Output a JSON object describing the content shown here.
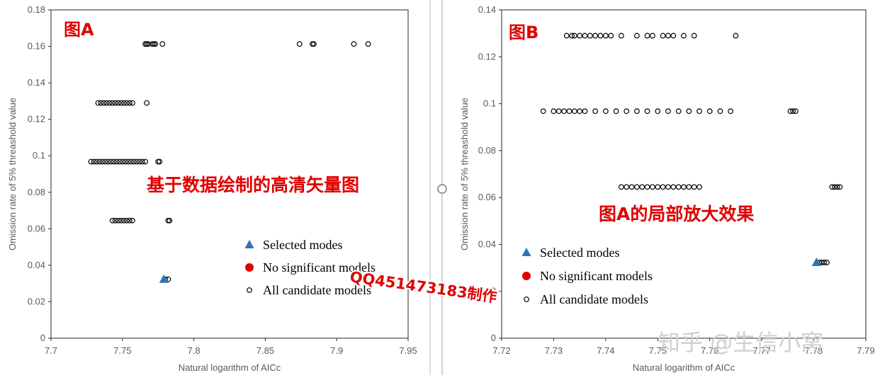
{
  "chart_data": [
    {
      "type": "scatter",
      "xlabel": "Natural logarithm of AICc",
      "ylabel": "Omission rate of 5% threashold value",
      "xlim": [
        7.7,
        7.95
      ],
      "xticks": [
        7.7,
        7.75,
        7.8,
        7.85,
        7.9,
        7.95
      ],
      "ylim": [
        0,
        0.18
      ],
      "yticks": [
        0,
        0.02,
        0.04,
        0.06,
        0.08,
        0.1,
        0.12,
        0.14,
        0.16,
        0.18
      ],
      "annotations": [
        "图A",
        "基于数据绘制的高清矢量图"
      ],
      "series": [
        {
          "name": "Selected modes",
          "color": "#2e75b6",
          "marker": "triangle",
          "x": [
            7.779
          ],
          "y": [
            0.0323
          ]
        },
        {
          "name": "No significant models",
          "color": "#e00000",
          "marker": "dot",
          "x": [],
          "y": []
        },
        {
          "name": "All candidate models",
          "color": "#000000",
          "marker": "open-circle",
          "x": [
            7.766,
            7.767,
            7.768,
            7.771,
            7.772,
            7.773,
            7.778,
            7.874,
            7.883,
            7.884,
            7.912,
            7.922,
            7.733,
            7.735,
            7.737,
            7.739,
            7.741,
            7.743,
            7.745,
            7.747,
            7.749,
            7.751,
            7.753,
            7.755,
            7.757,
            7.767,
            7.728,
            7.73,
            7.732,
            7.734,
            7.736,
            7.738,
            7.74,
            7.742,
            7.744,
            7.746,
            7.748,
            7.75,
            7.752,
            7.754,
            7.756,
            7.758,
            7.76,
            7.762,
            7.764,
            7.766,
            7.775,
            7.776,
            7.743,
            7.745,
            7.747,
            7.749,
            7.751,
            7.753,
            7.755,
            7.757,
            7.782,
            7.783,
            7.78,
            7.782
          ],
          "y": [
            0.1613,
            0.1613,
            0.1613,
            0.1613,
            0.1613,
            0.1613,
            0.1613,
            0.1613,
            0.1613,
            0.1613,
            0.1613,
            0.1613,
            0.129,
            0.129,
            0.129,
            0.129,
            0.129,
            0.129,
            0.129,
            0.129,
            0.129,
            0.129,
            0.129,
            0.129,
            0.129,
            0.129,
            0.0968,
            0.0968,
            0.0968,
            0.0968,
            0.0968,
            0.0968,
            0.0968,
            0.0968,
            0.0968,
            0.0968,
            0.0968,
            0.0968,
            0.0968,
            0.0968,
            0.0968,
            0.0968,
            0.0968,
            0.0968,
            0.0968,
            0.0968,
            0.0968,
            0.0968,
            0.0645,
            0.0645,
            0.0645,
            0.0645,
            0.0645,
            0.0645,
            0.0645,
            0.0645,
            0.0645,
            0.0645,
            0.0323,
            0.0323
          ]
        }
      ]
    },
    {
      "type": "scatter",
      "xlabel": "Natural logarithm of AICc",
      "ylabel": "Omission rate of 5% threashold value",
      "xlim": [
        7.72,
        7.79
      ],
      "xticks": [
        7.72,
        7.73,
        7.74,
        7.75,
        7.76,
        7.77,
        7.78,
        7.79
      ],
      "ylim": [
        0,
        0.14
      ],
      "yticks": [
        0,
        0.02,
        0.04,
        0.06,
        0.08,
        0.1,
        0.12,
        0.14
      ],
      "annotations": [
        "图B",
        "图A的局部放大效果"
      ],
      "series": [
        {
          "name": "Selected modes",
          "color": "#2e75b6",
          "marker": "triangle",
          "x": [
            7.7805
          ],
          "y": [
            0.0323
          ]
        },
        {
          "name": "No significant models",
          "color": "#e00000",
          "marker": "dot",
          "x": [],
          "y": []
        },
        {
          "name": "All candidate models",
          "color": "#000000",
          "marker": "open-circle",
          "x": [
            7.7325,
            7.7335,
            7.734,
            7.735,
            7.736,
            7.737,
            7.738,
            7.739,
            7.74,
            7.741,
            7.743,
            7.746,
            7.748,
            7.749,
            7.751,
            7.752,
            7.753,
            7.755,
            7.757,
            7.765,
            7.728,
            7.73,
            7.731,
            7.732,
            7.733,
            7.734,
            7.735,
            7.736,
            7.738,
            7.74,
            7.742,
            7.744,
            7.746,
            7.748,
            7.75,
            7.752,
            7.754,
            7.756,
            7.758,
            7.76,
            7.762,
            7.764,
            7.7755,
            7.776,
            7.7765,
            7.743,
            7.744,
            7.745,
            7.746,
            7.747,
            7.748,
            7.749,
            7.75,
            7.751,
            7.752,
            7.753,
            7.754,
            7.755,
            7.756,
            7.757,
            7.758,
            7.7835,
            7.784,
            7.7845,
            7.785,
            7.781,
            7.7815,
            7.782,
            7.7825
          ],
          "y": [
            0.129,
            0.129,
            0.129,
            0.129,
            0.129,
            0.129,
            0.129,
            0.129,
            0.129,
            0.129,
            0.129,
            0.129,
            0.129,
            0.129,
            0.129,
            0.129,
            0.129,
            0.129,
            0.129,
            0.129,
            0.0968,
            0.0968,
            0.0968,
            0.0968,
            0.0968,
            0.0968,
            0.0968,
            0.0968,
            0.0968,
            0.0968,
            0.0968,
            0.0968,
            0.0968,
            0.0968,
            0.0968,
            0.0968,
            0.0968,
            0.0968,
            0.0968,
            0.0968,
            0.0968,
            0.0968,
            0.0968,
            0.0968,
            0.0968,
            0.0645,
            0.0645,
            0.0645,
            0.0645,
            0.0645,
            0.0645,
            0.0645,
            0.0645,
            0.0645,
            0.0645,
            0.0645,
            0.0645,
            0.0645,
            0.0645,
            0.0645,
            0.0645,
            0.0645,
            0.0645,
            0.0645,
            0.0645,
            0.0323,
            0.0323,
            0.0323,
            0.0323
          ]
        }
      ]
    }
  ],
  "watermarks": [
    "QQ451473183制作",
    "知乎 @生信小窝"
  ]
}
